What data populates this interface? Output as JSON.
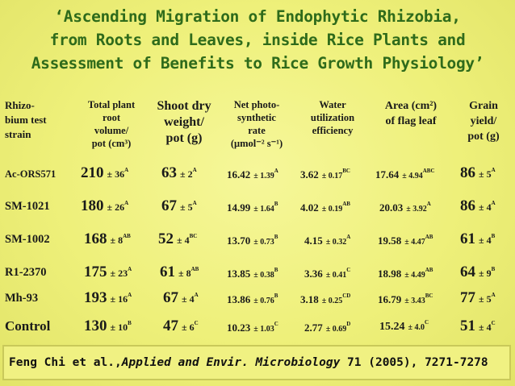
{
  "title": {
    "line1": "‘Ascending Migration of Endophytic Rhizobia,",
    "line2": "from Roots and Leaves, inside Rice Plants and",
    "line3": "Assessment of Benefits to Rice Growth Physiology’"
  },
  "headers": {
    "strain": [
      "Rhizo-",
      "bium test",
      "strain"
    ],
    "total_volume": [
      "Total plant",
      "root",
      "volume/",
      "pot (cm³)"
    ],
    "shoot_dry_weight": [
      "Shoot dry",
      "weight/",
      "pot (g)"
    ],
    "photosynthetic_rate": [
      "Net photo-",
      "synthetic",
      "rate",
      "(μmol⁻² s⁻¹)"
    ],
    "water_use": [
      "Water",
      "utilization",
      "efficiency"
    ],
    "flag_leaf_area": [
      "Area (cm²)",
      "of flag leaf"
    ],
    "grain_yield": [
      "Grain",
      "yield/",
      "pot (g)"
    ]
  },
  "rows": [
    {
      "strain": "Ac-ORS571",
      "volume": {
        "v": "210",
        "pm": "± 36",
        "s": "A"
      },
      "shoot": {
        "v": "63",
        "pm": "± 2",
        "s": "A"
      },
      "photo": {
        "v": "16.42",
        "pm": "± 1.39",
        "s": "A"
      },
      "water": {
        "v": "3.62",
        "pm": "± 0.17",
        "s": "BC"
      },
      "area": {
        "v": "17.64",
        "pm": "± 4.94",
        "s": "ABC"
      },
      "grain": {
        "v": "86",
        "pm": "± 5",
        "s": "A"
      }
    },
    {
      "strain": "SM-1021",
      "volume": {
        "v": "180",
        "pm": "± 26",
        "s": "A"
      },
      "shoot": {
        "v": "67",
        "pm": "± 5",
        "s": "A"
      },
      "photo": {
        "v": "14.99",
        "pm": "± 1.64",
        "s": "B"
      },
      "water": {
        "v": "4.02",
        "pm": "± 0.19",
        "s": "AB"
      },
      "area": {
        "v": "20.03",
        "pm": "± 3.92",
        "s": "A"
      },
      "grain": {
        "v": "86",
        "pm": "± 4",
        "s": "A"
      }
    },
    {
      "strain": "SM-1002",
      "volume": {
        "v": "168",
        "pm": "± 8",
        "s": "AB"
      },
      "shoot": {
        "v": "52",
        "pm": "± 4",
        "s": "BC"
      },
      "photo": {
        "v": "13.70",
        "pm": "± 0.73",
        "s": "B"
      },
      "water": {
        "v": "4.15",
        "pm": "± 0.32",
        "s": "A"
      },
      "area": {
        "v": "19.58",
        "pm": "± 4.47",
        "s": "AB"
      },
      "grain": {
        "v": "61",
        "pm": "± 4",
        "s": "B"
      }
    },
    {
      "strain": "R1-2370",
      "volume": {
        "v": "175",
        "pm": "± 23",
        "s": "A"
      },
      "shoot": {
        "v": "61",
        "pm": "± 8",
        "s": "AB"
      },
      "photo": {
        "v": "13.85",
        "pm": "± 0.38",
        "s": "B"
      },
      "water": {
        "v": "3.36",
        "pm": "± 0.41",
        "s": "C"
      },
      "area": {
        "v": "18.98",
        "pm": "± 4.49",
        "s": "AB"
      },
      "grain": {
        "v": "64",
        "pm": "± 9",
        "s": "B"
      }
    },
    {
      "strain": "Mh-93",
      "volume": {
        "v": "193",
        "pm": "± 16",
        "s": "A"
      },
      "shoot": {
        "v": "67",
        "pm": "± 4",
        "s": "A"
      },
      "photo": {
        "v": "13.86",
        "pm": "± 0.76",
        "s": "B"
      },
      "water": {
        "v": "3.18",
        "pm": "± 0.25",
        "s": "CD"
      },
      "area": {
        "v": "16.79",
        "pm": "± 3.43",
        "s": "BC"
      },
      "grain": {
        "v": "77",
        "pm": "± 5",
        "s": "A"
      }
    },
    {
      "strain": "Control",
      "volume": {
        "v": "130",
        "pm": "± 10",
        "s": "B"
      },
      "shoot": {
        "v": "47",
        "pm": "± 6",
        "s": "C"
      },
      "photo": {
        "v": "10.23",
        "pm": "± 1.03",
        "s": "C"
      },
      "water": {
        "v": "2.77",
        "pm": "± 0.69",
        "s": "D"
      },
      "area": {
        "v": "15.24",
        "pm": "± 4.0",
        "s": "C"
      },
      "grain": {
        "v": "51",
        "pm": "± 4",
        "s": "C"
      }
    }
  ],
  "footer": {
    "authors": "Feng Chi et al.,",
    "journal": "Applied and Envir. Microbiology",
    "citation": " 71 (2005), 7271-7278"
  },
  "colors": {
    "background": "#eef07a",
    "title": "#2f6b1b"
  }
}
